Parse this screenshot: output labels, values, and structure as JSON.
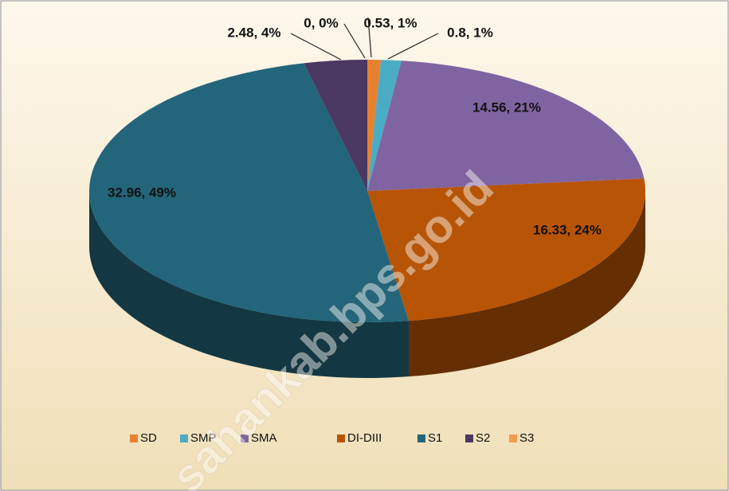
{
  "chart_data": {
    "type": "pie",
    "categories": [
      "SD",
      "SMP",
      "SMA",
      "DI-DIII",
      "S1",
      "S2",
      "S3"
    ],
    "values": [
      0.53,
      0.8,
      14.56,
      16.33,
      32.96,
      2.48,
      0
    ],
    "value_labels": [
      "0.53, 1%",
      "0.8, 1%",
      "14.56, 21%",
      "16.33, 24%",
      "32.96, 49%",
      "2.48, 4%",
      "0, 0%"
    ],
    "colors": [
      "#e8812f",
      "#4bacc6",
      "#8064a2",
      "#b85406",
      "#23657a",
      "#4b3862",
      "#f59a55"
    ],
    "watermark": "sahankab.bps.go.id",
    "legend": "bottom"
  }
}
